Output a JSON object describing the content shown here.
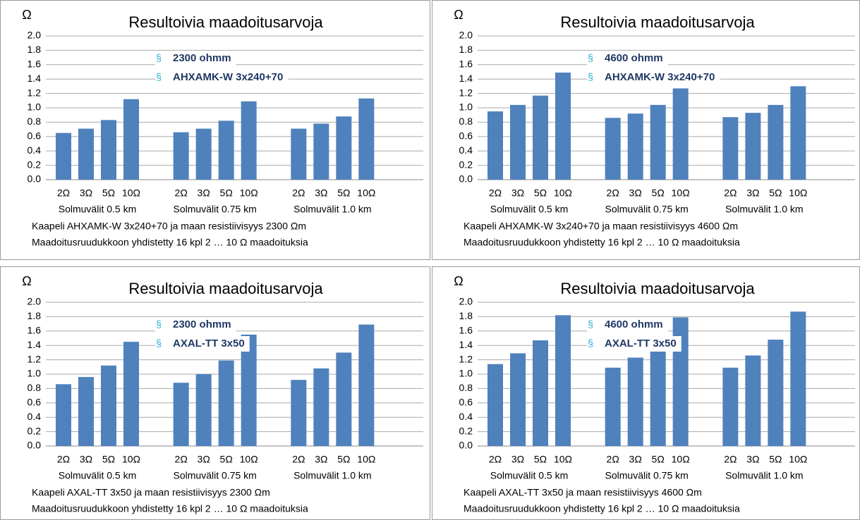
{
  "chart_data": [
    {
      "type": "bar",
      "title": "Resultoivia maadoitusarvoja",
      "y_label": "Ω",
      "bullet": "§",
      "annotations": [
        "2300 ohmm",
        "AHXAMK-W 3x240+70"
      ],
      "categories": [
        "2Ω",
        "3Ω",
        "5Ω",
        "10Ω",
        "2Ω",
        "3Ω",
        "5Ω",
        "10Ω",
        "2Ω",
        "3Ω",
        "5Ω",
        "10Ω"
      ],
      "groups": [
        "Solmuvälit  0.5 km",
        "Solmuvälit 0.75 km",
        "Solmuvälit 1.0 km"
      ],
      "values": [
        0.65,
        0.71,
        0.83,
        1.12,
        0.66,
        0.71,
        0.82,
        1.09,
        0.71,
        0.78,
        0.88,
        1.13
      ],
      "color": "#4f81bd",
      "ylim": [
        0,
        2
      ],
      "yticks": [
        {
          "value": 0,
          "label": "0.0"
        },
        0.2,
        0.4,
        0.6,
        0.8,
        {
          "value": 1,
          "label": "1.0"
        },
        1.2,
        1.4,
        1.6,
        1.8,
        {
          "value": 2,
          "label": "2.0"
        }
      ],
      "grid": true,
      "notes": [
        "Kaapeli  AHXAMK-W 3x240+70 ja maan resistiivisyys 2300 Ωm",
        "Maadoitusruudukkoon yhdistetty 16 kpl  2 … 10 Ω maadoituksia"
      ]
    },
    {
      "type": "bar",
      "title": "Resultoivia maadoitusarvoja",
      "y_label": "Ω",
      "bullet": "§",
      "annotations": [
        "4600 ohmm",
        "AHXAMK-W 3x240+70"
      ],
      "categories": [
        "2Ω",
        "3Ω",
        "5Ω",
        "10Ω",
        "2Ω",
        "3Ω",
        "5Ω",
        "10Ω",
        "2Ω",
        "3Ω",
        "5Ω",
        "10Ω"
      ],
      "groups": [
        "Solmuvälit  0.5 km",
        "Solmuvälit 0.75 km",
        "Solmuvälit 1.0 km"
      ],
      "values": [
        0.95,
        1.04,
        1.17,
        1.49,
        0.86,
        0.92,
        1.04,
        1.27,
        0.87,
        0.93,
        1.04,
        1.3
      ],
      "color": "#4f81bd",
      "ylim": [
        0,
        2
      ],
      "yticks": [
        {
          "value": 0,
          "label": "0.0"
        },
        0.2,
        0.4,
        0.6,
        0.8,
        {
          "value": 1,
          "label": "1.0"
        },
        1.2,
        1.4,
        1.6,
        1.8,
        {
          "value": 2,
          "label": "2.0"
        }
      ],
      "grid": true,
      "notes": [
        "Kaapeli  AHXAMK-W 3x240+70 ja maan resistiivisyys 4600 Ωm",
        "Maadoitusruudukkoon yhdistetty 16 kpl  2 … 10 Ω maadoituksia"
      ]
    },
    {
      "type": "bar",
      "title": "Resultoivia maadoitusarvoja",
      "y_label": "Ω",
      "bullet": "§",
      "annotations": [
        "2300 ohmm",
        "AXAL-TT 3x50"
      ],
      "categories": [
        "2Ω",
        "3Ω",
        "5Ω",
        "10Ω",
        "2Ω",
        "3Ω",
        "5Ω",
        "10Ω",
        "2Ω",
        "3Ω",
        "5Ω",
        "10Ω"
      ],
      "groups": [
        "Solmuvälit  0.5 km",
        "Solmuvälit 0.75 km",
        "Solmuvälit 1.0 km"
      ],
      "values": [
        0.86,
        0.96,
        1.12,
        1.45,
        0.88,
        1.0,
        1.19,
        1.55,
        0.92,
        1.08,
        1.3,
        1.69
      ],
      "color": "#4f81bd",
      "ylim": [
        0,
        2
      ],
      "yticks": [
        {
          "value": 0,
          "label": "0.0"
        },
        0.2,
        0.4,
        0.6,
        0.8,
        {
          "value": 1,
          "label": "1.0"
        },
        1.2,
        1.4,
        1.6,
        1.8,
        {
          "value": 2,
          "label": "2.0"
        }
      ],
      "grid": true,
      "notes": [
        "Kaapeli  AXAL-TT 3x50 ja maan resistiivisyys 2300 Ωm",
        "Maadoitusruudukkoon yhdistetty 16 kpl  2 … 10 Ω maadoituksia"
      ]
    },
    {
      "type": "bar",
      "title": "Resultoivia maadoitusarvoja",
      "y_label": "Ω",
      "bullet": "§",
      "annotations": [
        "4600 ohmm",
        "AXAL-TT 3x50"
      ],
      "categories": [
        "2Ω",
        "3Ω",
        "5Ω",
        "10Ω",
        "2Ω",
        "3Ω",
        "5Ω",
        "10Ω",
        "2Ω",
        "3Ω",
        "5Ω",
        "10Ω"
      ],
      "groups": [
        "Solmuvälit  0.5 km",
        "Solmuvälit 0.75 km",
        "Solmuvälit 1.0 km"
      ],
      "values": [
        1.14,
        1.29,
        1.47,
        1.82,
        1.09,
        1.23,
        1.43,
        1.79,
        1.09,
        1.26,
        1.48,
        1.87
      ],
      "color": "#4f81bd",
      "ylim": [
        0,
        2
      ],
      "yticks": [
        {
          "value": 0,
          "label": "0.0"
        },
        0.2,
        0.4,
        0.6,
        0.8,
        {
          "value": 1,
          "label": "1.0"
        },
        1.2,
        1.4,
        1.6,
        1.8,
        {
          "value": 2,
          "label": "2.0"
        }
      ],
      "grid": true,
      "notes": [
        "Kaapeli  AXAL-TT 3x50 ja maan resistiivisyys 4600 Ωm",
        "Maadoitusruudukkoon yhdistetty 16 kpl  2 … 10 Ω maadoituksia"
      ]
    }
  ]
}
